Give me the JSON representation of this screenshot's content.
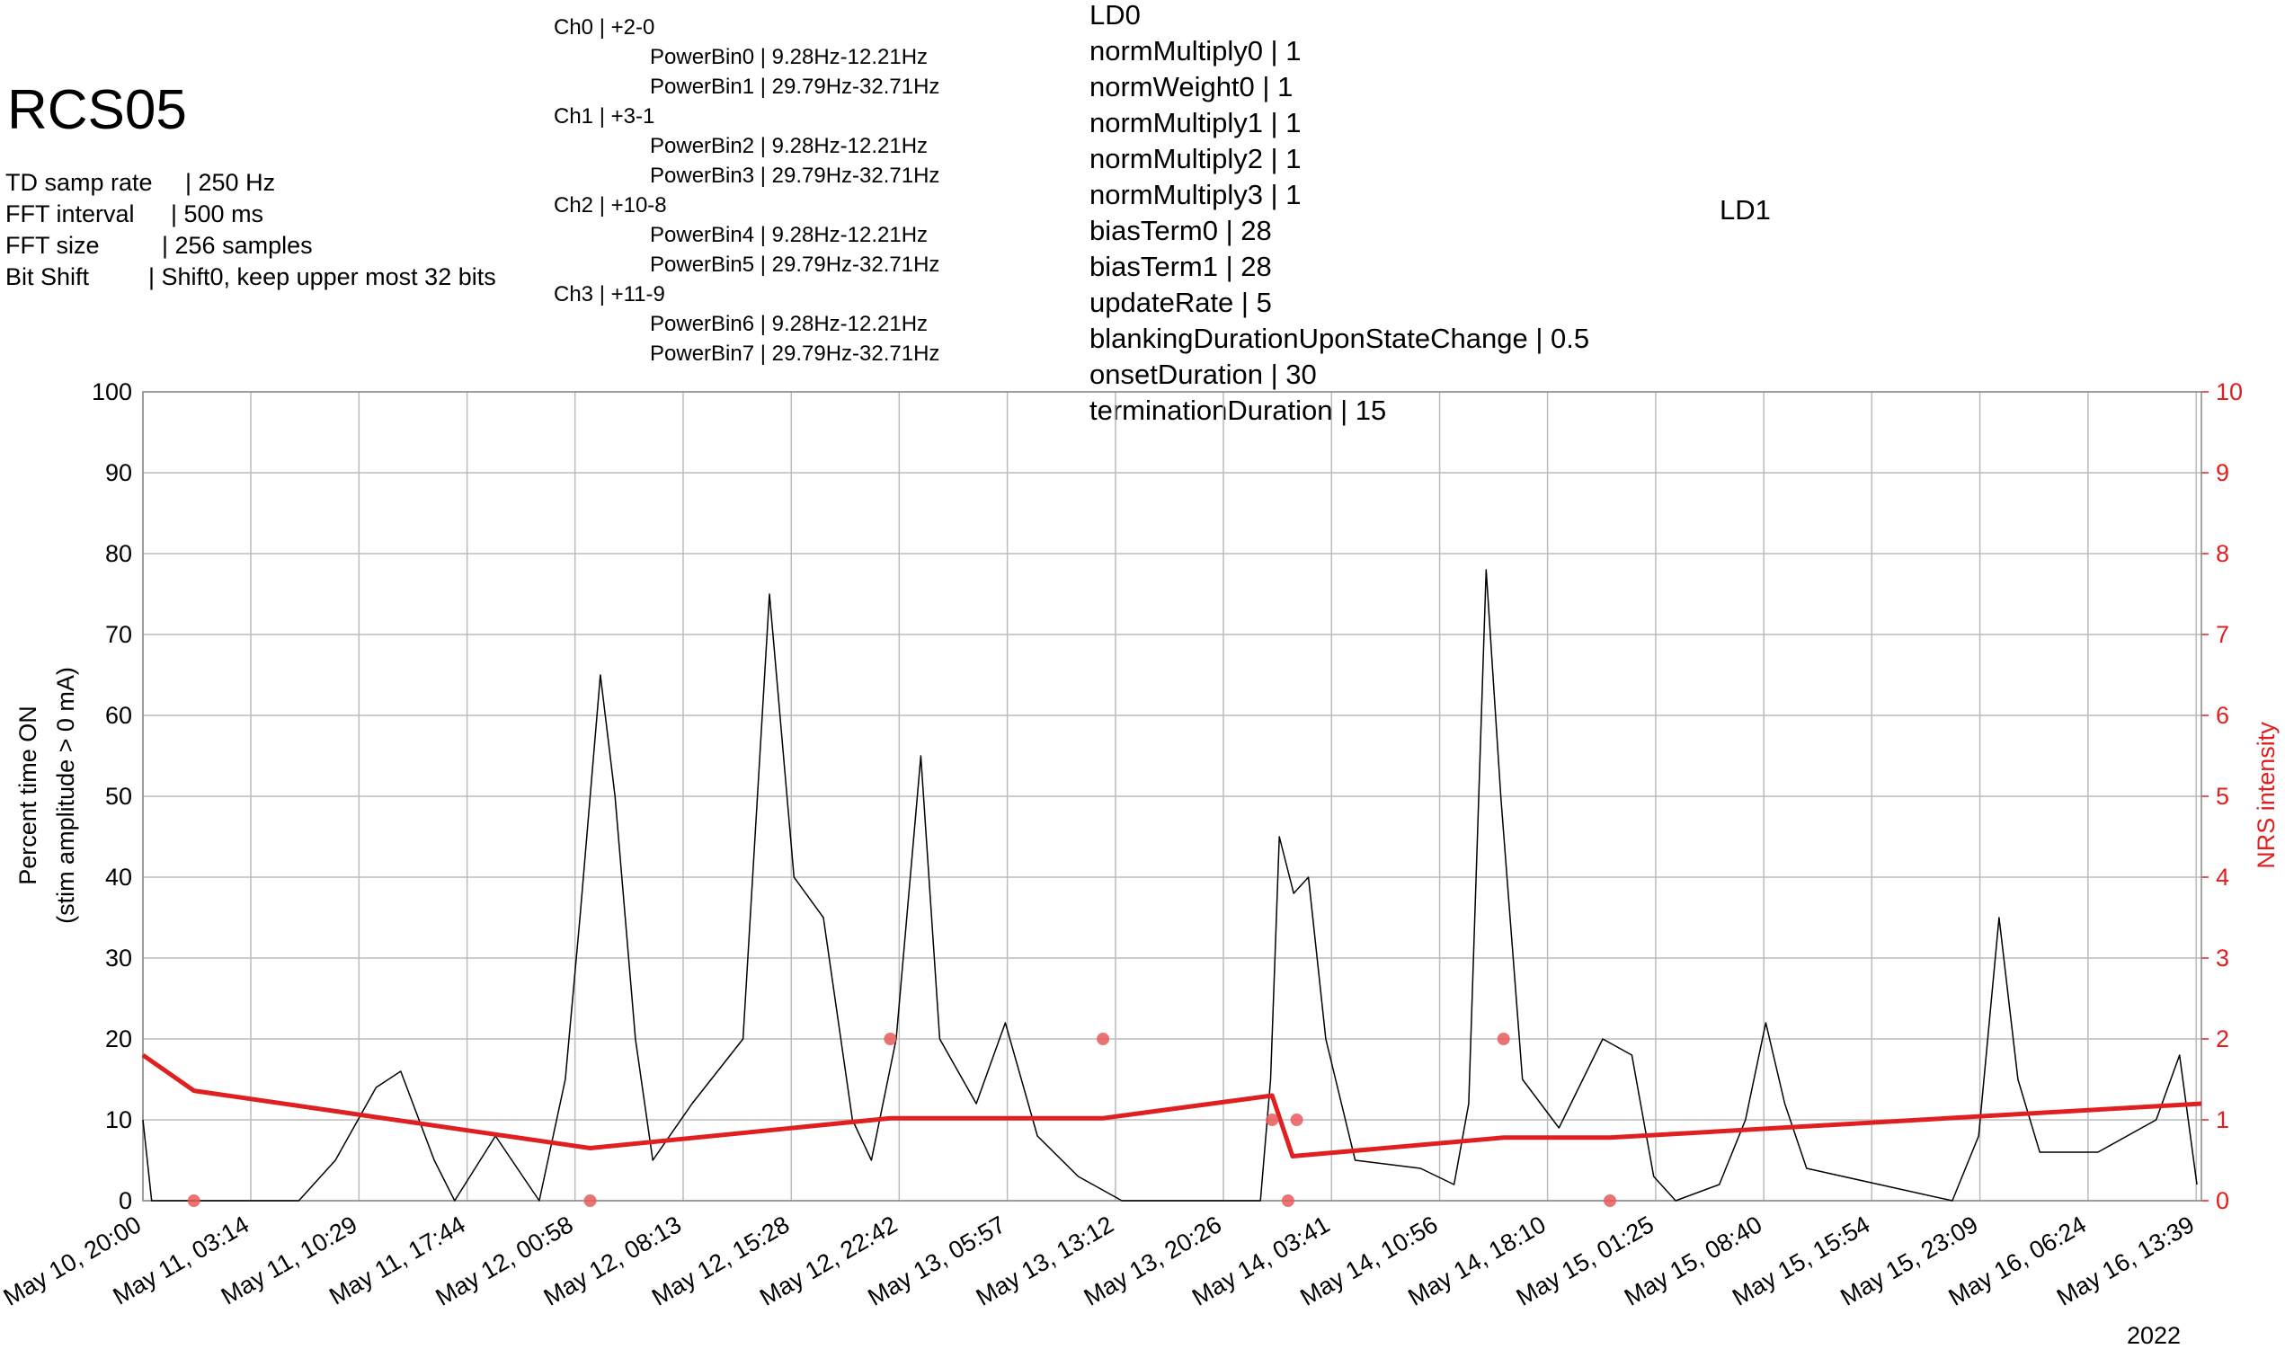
{
  "header": {
    "title": "RCS05",
    "info": [
      {
        "label": "TD samp rate",
        "value": "| 250 Hz"
      },
      {
        "label": "FFT interval",
        "value": "| 500 ms"
      },
      {
        "label": "FFT size",
        "value": "| 256 samples"
      },
      {
        "label": "Bit Shift",
        "value": "| Shift0, keep upper most 32 bits"
      }
    ]
  },
  "channels": [
    {
      "name": "Ch0 | +2-0",
      "bins": [
        "PowerBin0 | 9.28Hz-12.21Hz",
        "PowerBin1 | 29.79Hz-32.71Hz"
      ]
    },
    {
      "name": "Ch1 | +3-1",
      "bins": [
        "PowerBin2 | 9.28Hz-12.21Hz",
        "PowerBin3 | 29.79Hz-32.71Hz"
      ]
    },
    {
      "name": "Ch2 | +10-8",
      "bins": [
        "PowerBin4 | 9.28Hz-12.21Hz",
        "PowerBin5 | 29.79Hz-32.71Hz"
      ]
    },
    {
      "name": "Ch3 | +11-9",
      "bins": [
        "PowerBin6 | 9.28Hz-12.21Hz",
        "PowerBin7 | 29.79Hz-32.71Hz"
      ]
    }
  ],
  "ld0": {
    "title": "LD0",
    "params": [
      "normMultiply0 | 1",
      "normWeight0 | 1",
      "normMultiply1 | 1",
      "normMultiply2 | 1",
      "normMultiply3 | 1",
      "biasTerm0 | 28",
      "biasTerm1 | 28",
      "updateRate | 5",
      "blankingDurationUponStateChange | 0.5",
      "onsetDuration | 30",
      "terminationDuration | 15"
    ]
  },
  "ld1": {
    "title": "LD1"
  },
  "chart_data": {
    "type": "line",
    "ylabel": [
      "Percent time ON",
      "(stim amplitude > 0 mA)"
    ],
    "y2label": "NRS intensity",
    "year": "2022",
    "xlim": [
      "May 10, 20:00",
      "May 16, 14:00"
    ],
    "xticks": [
      "May 10, 20:00",
      "May 11, 03:14",
      "May 11, 10:29",
      "May 11, 17:44",
      "May 12, 00:58",
      "May 12, 08:13",
      "May 12, 15:28",
      "May 12, 22:42",
      "May 13, 05:57",
      "May 13, 13:12",
      "May 13, 20:26",
      "May 14, 03:41",
      "May 14, 10:56",
      "May 14, 18:10",
      "May 15, 01:25",
      "May 15, 08:40",
      "May 15, 15:54",
      "May 15, 23:09",
      "May 16, 06:24",
      "May 16, 13:39"
    ],
    "ylim": [
      0,
      100
    ],
    "yticks": [
      0,
      10,
      20,
      30,
      40,
      50,
      60,
      70,
      80,
      90,
      100
    ],
    "y2lim": [
      0,
      10
    ],
    "y2ticks": [
      0,
      1,
      2,
      3,
      4,
      5,
      6,
      7,
      8,
      9,
      10
    ],
    "grid": true,
    "series": [
      {
        "type": "line",
        "color": "#000000",
        "x": [
          "May 10, 20:00",
          "May 10, 20:35",
          "May 11, 06:27",
          "May 11, 08:54",
          "May 11, 11:38",
          "May 11, 13:17",
          "May 11, 15:32",
          "May 11, 16:54",
          "May 11, 19:38",
          "May 11, 22:34",
          "May 12, 00:19",
          "May 12, 01:18",
          "May 12, 02:40",
          "May 12, 03:39",
          "May 12, 05:01",
          "May 12, 06:11",
          "May 12, 08:49",
          "May 12, 12:14",
          "May 12, 14:00",
          "May 12, 15:39",
          "May 12, 17:37",
          "May 12, 19:34",
          "May 12, 20:50",
          "May 12, 22:30",
          "May 13, 00:09",
          "May 13, 01:25",
          "May 13, 03:52",
          "May 13, 05:49",
          "May 13, 07:58",
          "May 13, 10:42",
          "May 13, 13:38",
          "May 13, 22:55",
          "May 13, 23:36",
          "May 14, 00:11",
          "May 14, 01:09",
          "May 14, 02:08",
          "May 14, 03:18",
          "May 14, 05:16",
          "May 14, 09:39",
          "May 14, 11:54",
          "May 14, 12:53",
          "May 14, 14:03",
          "May 14, 15:02",
          "May 14, 16:29",
          "May 14, 18:56",
          "May 14, 21:52",
          "May 14, 23:49",
          "May 15, 01:17",
          "May 15, 02:45",
          "May 15, 05:41",
          "May 15, 07:26",
          "May 15, 08:48",
          "May 15, 10:04",
          "May 15, 11:32",
          "May 15, 16:25",
          "May 15, 21:18",
          "May 15, 23:04",
          "May 16, 00:26",
          "May 16, 01:42",
          "May 16, 03:10",
          "May 16, 07:04",
          "May 16, 10:58",
          "May 16, 12:32",
          "May 16, 13:42"
        ],
        "values": [
          10,
          0,
          0,
          5,
          14,
          16,
          5,
          0,
          8,
          0,
          15,
          35,
          65,
          50,
          20,
          5,
          12,
          20,
          75,
          40,
          35,
          10,
          5,
          20,
          55,
          20,
          12,
          22,
          8,
          3,
          0,
          0,
          15,
          45,
          38,
          40,
          20,
          5,
          4,
          2,
          12,
          78,
          50,
          15,
          9,
          20,
          18,
          3,
          0,
          2,
          10,
          22,
          12,
          4,
          2,
          0,
          8,
          35,
          15,
          6,
          6,
          10,
          18,
          2
        ]
      },
      {
        "type": "line",
        "axis": "y2",
        "color": "#e02020",
        "x": [
          "May 10, 20:00",
          "May 10, 23:25",
          "May 12, 01:59",
          "May 12, 22:06",
          "May 13, 12:22",
          "May 13, 23:42",
          "May 14, 01:04",
          "May 14, 15:13",
          "May 14, 22:21",
          "May 16, 14:00"
        ],
        "values": [
          1.8,
          1.36,
          0.65,
          1.02,
          1.02,
          1.3,
          0.55,
          0.78,
          0.78,
          1.2
        ]
      },
      {
        "type": "scatter",
        "axis": "y2",
        "color": "#e85a5a",
        "x": [
          "May 10, 23:25",
          "May 12, 01:59",
          "May 12, 22:06",
          "May 13, 12:22",
          "May 13, 23:42",
          "May 14, 00:46",
          "May 14, 01:21",
          "May 14, 15:13",
          "May 14, 22:21"
        ],
        "values": [
          0,
          0,
          2,
          2,
          1,
          0,
          1,
          2,
          0
        ]
      }
    ]
  }
}
